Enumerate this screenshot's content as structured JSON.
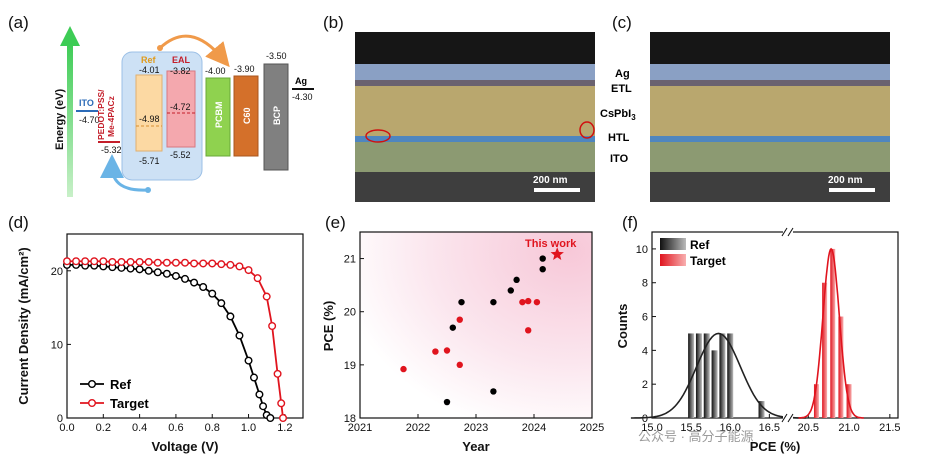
{
  "panels": {
    "a": {
      "label": "(a)",
      "energy_axis": "Energy (eV)",
      "ito": {
        "name": "ITO",
        "level": "-4.70"
      },
      "htl": {
        "name": "PEDOT:PSS/\nMe-4PACz",
        "level": "-5.32"
      },
      "ref": {
        "name": "Ref",
        "top": "-4.01",
        "mid": "-4.98",
        "bottom": "-5.71"
      },
      "eal": {
        "name": "EAL",
        "top": "-3.82",
        "mid": "-4.72",
        "bottom": "-5.52"
      },
      "pcbm": {
        "name": "PCBM",
        "level": "-4.00"
      },
      "c60": {
        "name": "C60",
        "level": "-3.90"
      },
      "bcp": {
        "name": "BCP",
        "level": "-3.50"
      },
      "ag": {
        "name": "Ag",
        "level": "-4.30"
      }
    },
    "b": {
      "label": "(b)",
      "scale_bar": "200 nm"
    },
    "c": {
      "label": "(c)",
      "scale_bar": "200 nm",
      "layers": [
        "Ag",
        "ETL",
        "CsPbI",
        "HTL",
        "ITO"
      ],
      "subscript": "3"
    },
    "d": {
      "label": "(d)"
    },
    "e": {
      "label": "(e)",
      "annotation": "This work"
    },
    "f": {
      "label": "(f)"
    }
  },
  "watermark": "公众号 · 高分子能源",
  "chart_data": [
    {
      "panel": "d",
      "type": "line",
      "xlabel": "Voltage (V)",
      "ylabel": "Current Density (mA/cm²)",
      "xlim": [
        0.0,
        1.3
      ],
      "ylim": [
        0,
        25
      ],
      "xticks": [
        "0.0",
        "0.2",
        "0.4",
        "0.6",
        "0.8",
        "1.0",
        "1.2"
      ],
      "yticks": [
        "0",
        "10",
        "20"
      ],
      "legend_position": "bottom-left",
      "colors": {
        "Ref": "#000000",
        "Target": "#e0141e"
      },
      "series": [
        {
          "name": "Ref",
          "x": [
            0.0,
            0.05,
            0.1,
            0.15,
            0.2,
            0.25,
            0.3,
            0.35,
            0.4,
            0.45,
            0.5,
            0.55,
            0.6,
            0.65,
            0.7,
            0.75,
            0.8,
            0.85,
            0.9,
            0.95,
            1.0,
            1.03,
            1.06,
            1.08,
            1.1,
            1.12
          ],
          "y": [
            20.8,
            20.8,
            20.7,
            20.7,
            20.6,
            20.5,
            20.4,
            20.3,
            20.2,
            20.0,
            19.8,
            19.6,
            19.3,
            18.9,
            18.4,
            17.8,
            16.9,
            15.6,
            13.8,
            11.2,
            7.8,
            5.5,
            3.2,
            1.6,
            0.4,
            0.0
          ]
        },
        {
          "name": "Target",
          "x": [
            0.0,
            0.05,
            0.1,
            0.15,
            0.2,
            0.25,
            0.3,
            0.35,
            0.4,
            0.45,
            0.5,
            0.55,
            0.6,
            0.65,
            0.7,
            0.75,
            0.8,
            0.85,
            0.9,
            0.95,
            1.0,
            1.05,
            1.1,
            1.13,
            1.16,
            1.18,
            1.19
          ],
          "y": [
            21.3,
            21.3,
            21.3,
            21.3,
            21.3,
            21.2,
            21.2,
            21.2,
            21.2,
            21.2,
            21.1,
            21.1,
            21.1,
            21.1,
            21.0,
            21.0,
            21.0,
            20.9,
            20.8,
            20.6,
            20.1,
            19.0,
            16.5,
            12.5,
            6.0,
            2.0,
            0.0
          ]
        }
      ]
    },
    {
      "panel": "e",
      "type": "scatter",
      "xlabel": "Year",
      "ylabel": "PCE (%)",
      "xlim": [
        2021,
        2025
      ],
      "ylim": [
        18,
        21.5
      ],
      "xticks": [
        "2021",
        "2022",
        "2023",
        "2024",
        "2025"
      ],
      "yticks": [
        "18",
        "19",
        "20",
        "21"
      ],
      "colors": {
        "black": "#000000",
        "red": "#e0141e"
      },
      "series": [
        {
          "color": "black",
          "points": [
            [
              2022.5,
              18.3
            ],
            [
              2022.6,
              19.7
            ],
            [
              2022.75,
              20.18
            ],
            [
              2023.3,
              20.18
            ],
            [
              2023.3,
              18.5
            ],
            [
              2023.6,
              20.4
            ],
            [
              2023.7,
              20.6
            ],
            [
              2024.15,
              21.0
            ],
            [
              2024.15,
              20.8
            ]
          ]
        },
        {
          "color": "red",
          "points": [
            [
              2021.75,
              18.92
            ],
            [
              2022.3,
              19.25
            ],
            [
              2022.5,
              19.27
            ],
            [
              2022.72,
              19.0
            ],
            [
              2022.72,
              19.85
            ],
            [
              2023.8,
              20.18
            ],
            [
              2023.9,
              20.2
            ],
            [
              2023.9,
              19.65
            ],
            [
              2024.05,
              20.18
            ]
          ]
        },
        {
          "color": "red",
          "marker": "star",
          "points": [
            [
              2024.4,
              21.08
            ]
          ]
        }
      ]
    },
    {
      "panel": "f",
      "type": "bar",
      "xlabel": "PCE (%)",
      "ylabel": "Counts",
      "ylim": [
        0,
        11
      ],
      "yticks": [
        "0",
        "2",
        "4",
        "6",
        "8",
        "10"
      ],
      "xticks": [
        "15.0",
        "15.5",
        "16.0",
        "16.5",
        "20.5",
        "21.0",
        "21.5"
      ],
      "legend_position": "top-left",
      "colors": {
        "Ref": "#222222",
        "Target": "#e0141e"
      },
      "series": [
        {
          "name": "Ref",
          "x": [
            15.5,
            15.6,
            15.7,
            15.8,
            15.9,
            16.0,
            16.4
          ],
          "values": [
            5,
            5,
            5,
            4,
            5,
            5,
            1
          ],
          "fit_mean": 15.85,
          "fit_peak": 5.0,
          "fit_sigma": 0.28
        },
        {
          "name": "Target",
          "x": [
            20.6,
            20.7,
            20.8,
            20.9,
            21.0
          ],
          "values": [
            2,
            8,
            10,
            6,
            2
          ],
          "fit_mean": 20.78,
          "fit_peak": 10.0,
          "fit_sigma": 0.1
        }
      ]
    }
  ]
}
